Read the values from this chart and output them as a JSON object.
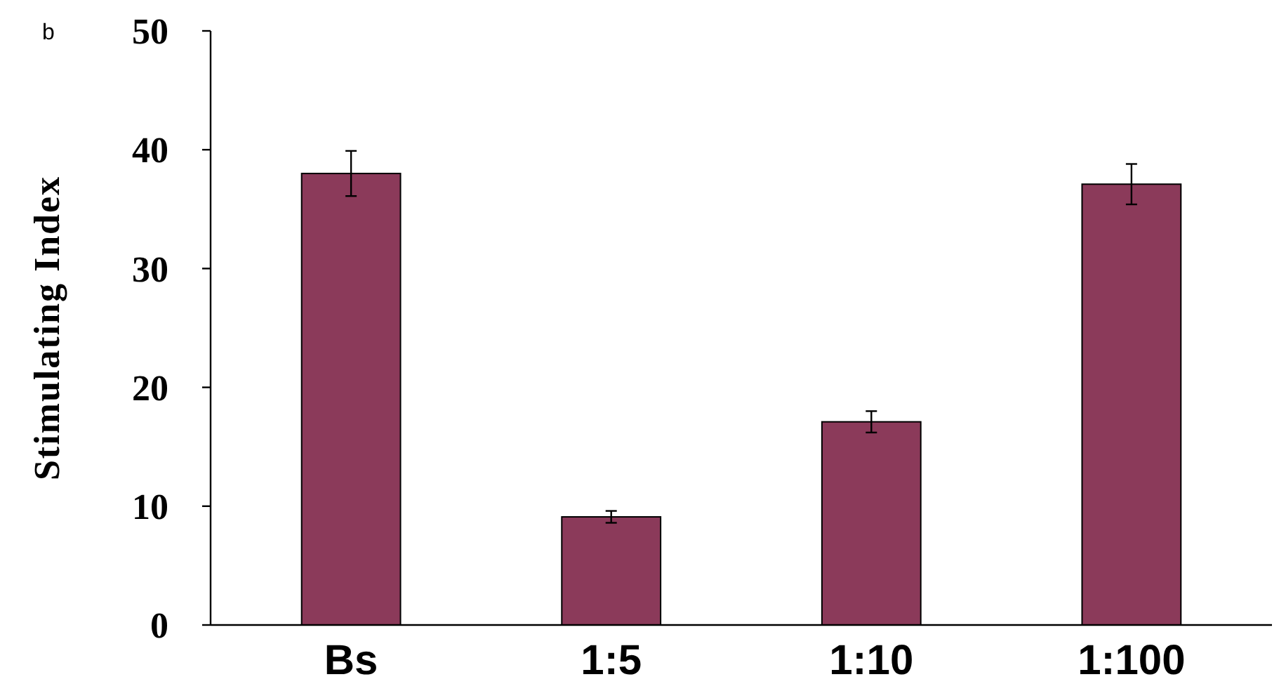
{
  "chart_data": {
    "type": "bar",
    "ylabel": "Stimulating Index",
    "annotations": [
      "b"
    ],
    "categories": [
      "Bs",
      "1:5",
      "1:10",
      "1:100"
    ],
    "values": [
      38,
      9.1,
      17.1,
      37.1
    ],
    "errors": [
      1.9,
      0.5,
      0.9,
      1.7
    ],
    "color": "#8b3a5a",
    "ylim": [
      0,
      50
    ],
    "yticks": [
      0,
      10,
      20,
      30,
      40,
      50
    ],
    "grid": false
  }
}
